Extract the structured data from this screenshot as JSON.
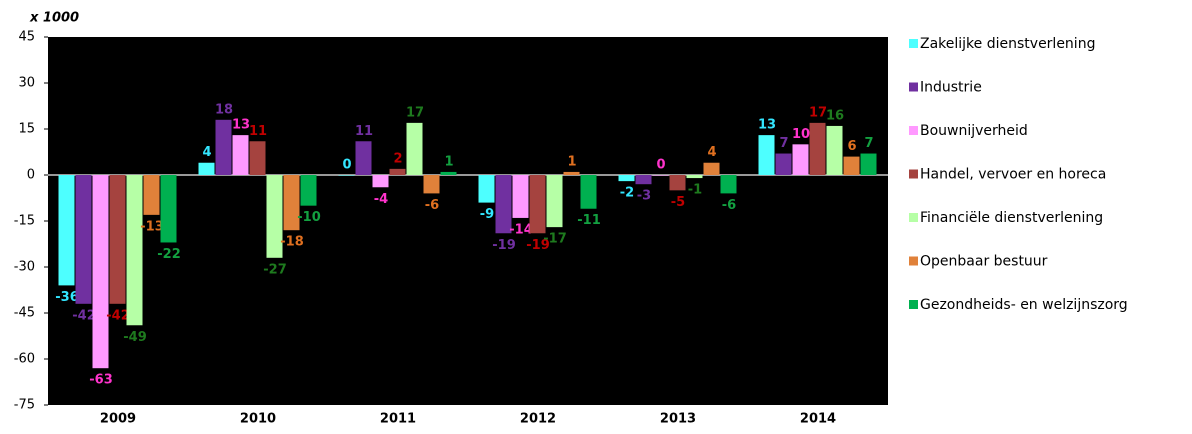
{
  "chart_data": {
    "type": "bar",
    "y_unit_label": "x 1000",
    "categories": [
      "2009",
      "2010",
      "2011",
      "2012",
      "2013",
      "2014"
    ],
    "series": [
      {
        "name": "Zakelijke dienstverlening",
        "color": "#4dffff",
        "label_color": "#33e6ff",
        "values": [
          -36,
          4,
          0,
          -9,
          -2,
          13
        ]
      },
      {
        "name": "Industrie",
        "color": "#7030a0",
        "label_color": "#7030a0",
        "values": [
          -42,
          18,
          11,
          -19,
          -3,
          7
        ]
      },
      {
        "name": "Bouwnijverheid",
        "color": "#ff99ff",
        "label_color": "#ff33cc",
        "values": [
          -63,
          13,
          -4,
          -14,
          0,
          10
        ]
      },
      {
        "name": "Handel, vervoer en horeca",
        "color": "#a5433f",
        "label_color": "#c00000",
        "values": [
          -42,
          11,
          2,
          -19,
          -5,
          17
        ]
      },
      {
        "name": "Financiële dienstverlening",
        "color": "#b6ffa6",
        "label_color": "#1e7a1e",
        "values": [
          -49,
          -27,
          17,
          -17,
          -1,
          16
        ]
      },
      {
        "name": "Openbaar bestuur",
        "color": "#e0813a",
        "label_color": "#e07020",
        "values": [
          -13,
          -18,
          -6,
          1,
          4,
          6
        ]
      },
      {
        "name": "Gezondheids- en welzijnszorg",
        "color": "#00b050",
        "label_color": "#13a040",
        "values": [
          -22,
          -10,
          1,
          -11,
          -6,
          7
        ]
      }
    ],
    "ylim": [
      -75,
      45
    ],
    "yticks": [
      -75,
      -60,
      -45,
      -30,
      -15,
      0,
      15,
      30,
      45
    ],
    "legend": "right"
  }
}
